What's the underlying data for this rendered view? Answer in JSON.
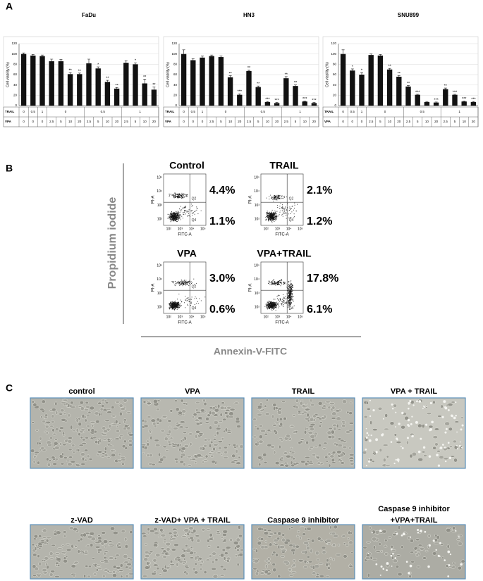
{
  "panel_labels": [
    "A",
    "B",
    "C"
  ],
  "chart_data": [
    {
      "type": "bar",
      "title": "FaDu",
      "y_label": "Cell viability (%)",
      "color": "#111111",
      "category_label": "VPA",
      "categories": [
        0,
        0,
        0,
        2.5,
        5,
        10,
        20,
        2.5,
        5,
        10,
        20,
        2.5,
        5,
        10,
        20
      ],
      "group_label": "TRAIL",
      "groups": [
        0,
        0.5,
        1,
        0,
        0.5,
        1
      ],
      "values": [
        100,
        97,
        96,
        86,
        86,
        61,
        61,
        82,
        72,
        46,
        33,
        83,
        80,
        43,
        31
      ],
      "errors": [
        2,
        2,
        2,
        4,
        3,
        3,
        2,
        8,
        3,
        3,
        2,
        4,
        3,
        8,
        5
      ],
      "annotations": [
        null,
        null,
        null,
        null,
        null,
        "**",
        "**",
        null,
        "*",
        "**",
        "**",
        null,
        "*",
        "**",
        "**"
      ],
      "ylim": [
        0,
        120
      ],
      "yticks": [
        0,
        20,
        40,
        60,
        80,
        100,
        120
      ],
      "grid": true
    },
    {
      "type": "bar",
      "title": "HN3",
      "y_label": "Cell viability (%)",
      "color": "#111111",
      "category_label": "VPA",
      "categories": [
        0,
        0,
        0,
        2.5,
        5,
        10,
        20,
        2.5,
        5,
        10,
        20,
        2.5,
        5,
        10,
        20
      ],
      "group_label": "TRAIL",
      "groups": [
        0,
        0.5,
        1,
        0,
        0.5,
        1
      ],
      "values": [
        100,
        88,
        93,
        96,
        94,
        55,
        21,
        67,
        36,
        7,
        5,
        53,
        38,
        8,
        5
      ],
      "errors": [
        8,
        3,
        3,
        2,
        2,
        3,
        2,
        2,
        2,
        1,
        1,
        3,
        2,
        1,
        1
      ],
      "annotations": [
        null,
        null,
        null,
        null,
        null,
        "**",
        "***",
        "**",
        "**",
        "***",
        "***",
        "**",
        "**",
        "***",
        "***"
      ],
      "ylim": [
        0,
        120
      ],
      "yticks": [
        0,
        20,
        40,
        60,
        80,
        100,
        120
      ],
      "grid": true
    },
    {
      "type": "bar",
      "title": "SNU899",
      "y_label": "Cell viability (%)",
      "color": "#111111",
      "category_label": "VPA",
      "categories": [
        0,
        0,
        0,
        2.5,
        5,
        10,
        20,
        2.5,
        5,
        10,
        20,
        2.5,
        5,
        10,
        20
      ],
      "group_label": "TRAIL",
      "groups": [
        0,
        0.5,
        1,
        0,
        0.5,
        1
      ],
      "values": [
        100,
        68,
        60,
        98,
        97,
        70,
        56,
        37,
        21,
        7,
        6,
        32,
        21,
        8,
        7
      ],
      "errors": [
        8,
        3,
        4,
        2,
        2,
        2,
        2,
        2,
        1,
        1,
        1,
        2,
        1,
        1,
        1
      ],
      "annotations": [
        null,
        "*",
        "*",
        null,
        null,
        "**",
        "**",
        "**",
        "***",
        null,
        "***",
        "**",
        "***",
        "***",
        "***"
      ],
      "ylim": [
        0,
        120
      ],
      "yticks": [
        0,
        20,
        40,
        60,
        80,
        100,
        120
      ],
      "grid": true
    }
  ],
  "flow": {
    "y_label": "Propidium iodide",
    "x_label": "Annexin-V-FITC",
    "plot_y_label": "PI-A",
    "plot_x_label": "FITC-A",
    "quadrant_labels": [
      "Q2",
      "Q4"
    ],
    "ticks": [
      "10²",
      "10³",
      "10⁴",
      "10⁵"
    ],
    "plots": [
      {
        "title": "Control",
        "upper_right": "4.4%",
        "lower_right": "1.1%"
      },
      {
        "title": "TRAIL",
        "upper_right": "2.1%",
        "lower_right": "1.2%"
      },
      {
        "title": "VPA",
        "upper_right": "3.0%",
        "lower_right": "0.6%"
      },
      {
        "title": "VPA+TRAIL",
        "upper_right": "17.8%",
        "lower_right": "6.1%"
      }
    ]
  },
  "images": {
    "labels": [
      [
        "control"
      ],
      [
        "VPA"
      ],
      [
        "TRAIL"
      ],
      [
        "VPA + TRAIL"
      ],
      [
        "z-VAD"
      ],
      [
        "z-VAD+ VPA + TRAIL"
      ],
      [
        "Caspase 9 inhibitor"
      ],
      [
        "Caspase 9 inhibitor",
        "+VPA+TRAIL"
      ]
    ]
  }
}
